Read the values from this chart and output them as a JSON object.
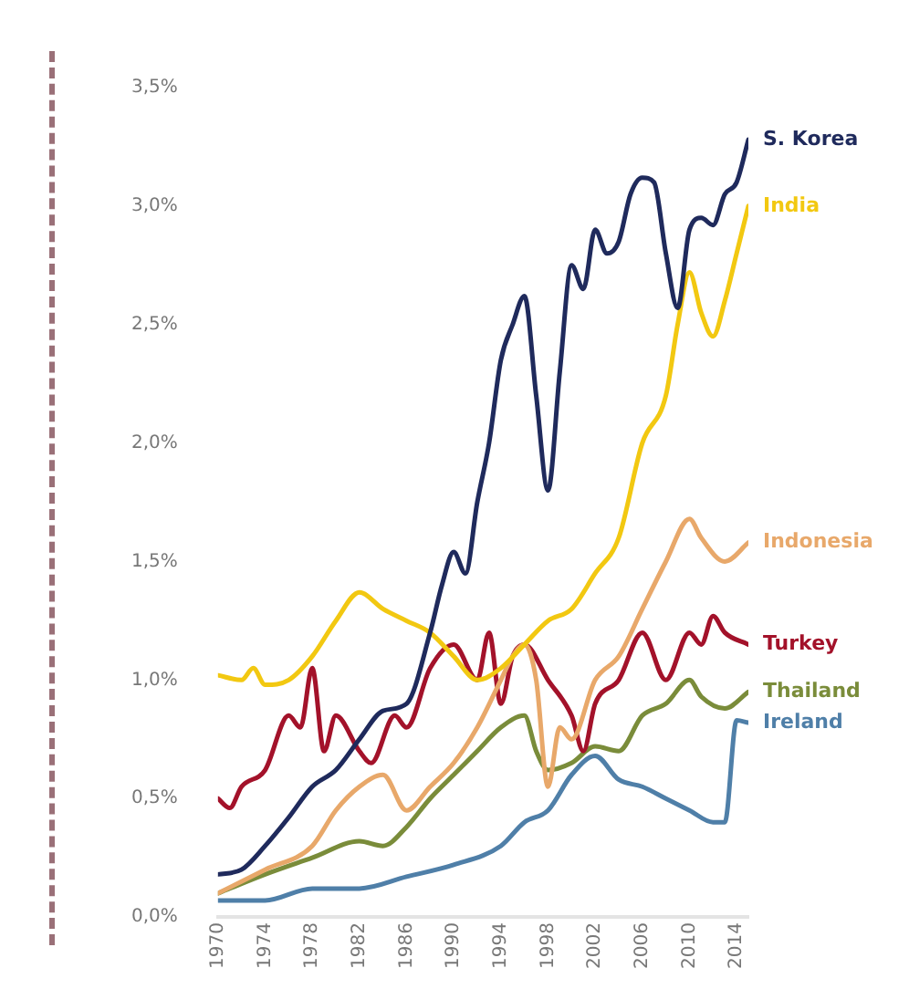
{
  "chart_data": {
    "type": "line",
    "xlim": [
      1970,
      2015
    ],
    "xticks": [
      1970,
      1974,
      1978,
      1982,
      1986,
      1990,
      1994,
      1998,
      2002,
      2006,
      2010,
      2014
    ],
    "ylim": [
      0,
      3.5
    ],
    "yticks": [
      {
        "value": 0,
        "label": "0,0%"
      },
      {
        "value": 0.5,
        "label": "0,5%"
      },
      {
        "value": 1,
        "label": "1,0%"
      },
      {
        "value": 1.5,
        "label": "1,5%"
      },
      {
        "value": 2,
        "label": "2,0%"
      },
      {
        "value": 2.5,
        "label": "2,5%"
      },
      {
        "value": 3,
        "label": "3,0%"
      },
      {
        "value": 3.5,
        "label": "3,5%"
      }
    ],
    "grid": false,
    "legend": false,
    "marker": "none",
    "line_style": "solid",
    "series": [
      {
        "name": "S. Korea",
        "color": "#1f2a5c",
        "x": [
          1970,
          1972,
          1974,
          1976,
          1978,
          1980,
          1982,
          1984,
          1986,
          1988,
          1989,
          1990,
          1991,
          1992,
          1993,
          1994,
          1995,
          1996,
          1997,
          1998,
          1999,
          2000,
          2001,
          2002,
          2003,
          2004,
          2005,
          2006,
          2007,
          2008,
          2009,
          2010,
          2011,
          2012,
          2013,
          2014,
          2015
        ],
        "values": [
          0.18,
          0.2,
          0.3,
          0.42,
          0.55,
          0.62,
          0.75,
          0.87,
          0.9,
          1.2,
          1.4,
          1.54,
          1.45,
          1.75,
          2.0,
          2.35,
          2.5,
          2.62,
          2.2,
          1.8,
          2.3,
          2.75,
          2.65,
          2.9,
          2.8,
          2.85,
          3.05,
          3.12,
          3.1,
          2.8,
          2.57,
          2.9,
          2.95,
          2.92,
          3.05,
          3.1,
          3.28
        ]
      },
      {
        "name": "India",
        "color": "#f2c811",
        "x": [
          1970,
          1972,
          1973,
          1974,
          1976,
          1978,
          1980,
          1982,
          1984,
          1986,
          1988,
          1990,
          1992,
          1994,
          1996,
          1998,
          2000,
          2002,
          2004,
          2006,
          2008,
          2009,
          2010,
          2011,
          2012,
          2013,
          2014,
          2015
        ],
        "values": [
          1.02,
          1.0,
          1.05,
          0.98,
          1.0,
          1.1,
          1.25,
          1.37,
          1.3,
          1.25,
          1.2,
          1.1,
          1.0,
          1.05,
          1.15,
          1.25,
          1.3,
          1.45,
          1.6,
          2.0,
          2.2,
          2.5,
          2.72,
          2.55,
          2.45,
          2.6,
          2.8,
          3.0
        ]
      },
      {
        "name": "Indonesia",
        "color": "#e8a86a",
        "x": [
          1970,
          1974,
          1978,
          1980,
          1982,
          1984,
          1986,
          1988,
          1990,
          1992,
          1994,
          1995,
          1996,
          1997,
          1998,
          1999,
          2000,
          2002,
          2004,
          2006,
          2008,
          2010,
          2011,
          2013,
          2015
        ],
        "values": [
          0.1,
          0.2,
          0.3,
          0.45,
          0.55,
          0.6,
          0.45,
          0.55,
          0.65,
          0.8,
          1.0,
          1.1,
          1.15,
          1.0,
          0.55,
          0.8,
          0.75,
          1.0,
          1.1,
          1.3,
          1.5,
          1.68,
          1.6,
          1.5,
          1.58
        ]
      },
      {
        "name": "Turkey",
        "color": "#a3122a",
        "x": [
          1970,
          1971,
          1972,
          1974,
          1976,
          1977,
          1978,
          1979,
          1980,
          1982,
          1983,
          1985,
          1986,
          1988,
          1990,
          1992,
          1993,
          1994,
          1995,
          1996,
          1998,
          2000,
          2001,
          2002,
          2004,
          2006,
          2008,
          2010,
          2011,
          2012,
          2013,
          2015
        ],
        "values": [
          0.5,
          0.46,
          0.55,
          0.62,
          0.85,
          0.8,
          1.05,
          0.7,
          0.85,
          0.7,
          0.65,
          0.85,
          0.8,
          1.05,
          1.15,
          1.0,
          1.2,
          0.9,
          1.1,
          1.15,
          1.0,
          0.85,
          0.7,
          0.9,
          1.0,
          1.2,
          1.0,
          1.2,
          1.15,
          1.27,
          1.2,
          1.15
        ]
      },
      {
        "name": "Thailand",
        "color": "#7a8c3a",
        "x": [
          1970,
          1974,
          1978,
          1982,
          1984,
          1986,
          1988,
          1990,
          1992,
          1994,
          1996,
          1997,
          1998,
          2000,
          2002,
          2004,
          2006,
          2008,
          2010,
          2011,
          2013,
          2015
        ],
        "values": [
          0.1,
          0.18,
          0.25,
          0.32,
          0.3,
          0.38,
          0.5,
          0.6,
          0.7,
          0.8,
          0.85,
          0.7,
          0.62,
          0.65,
          0.72,
          0.7,
          0.85,
          0.9,
          1.0,
          0.93,
          0.88,
          0.95
        ]
      },
      {
        "name": "Ireland",
        "color": "#4f7fa8",
        "x": [
          1970,
          1974,
          1978,
          1982,
          1986,
          1990,
          1994,
          1996,
          1998,
          2000,
          2002,
          2004,
          2006,
          2008,
          2010,
          2012,
          2013,
          2014,
          2015
        ],
        "values": [
          0.07,
          0.07,
          0.12,
          0.12,
          0.17,
          0.22,
          0.3,
          0.4,
          0.45,
          0.6,
          0.68,
          0.58,
          0.55,
          0.5,
          0.45,
          0.4,
          0.4,
          0.83,
          0.82
        ]
      }
    ]
  }
}
